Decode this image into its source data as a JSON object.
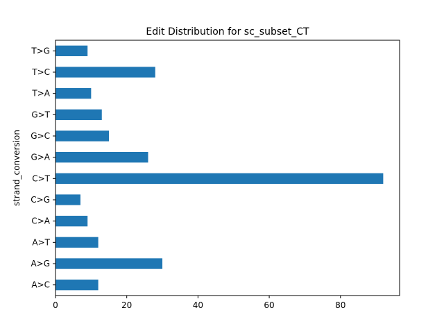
{
  "chart_data": {
    "type": "bar",
    "orientation": "horizontal",
    "title": "Edit Distribution for sc_subset_CT",
    "xlabel": "",
    "ylabel": "strand_conversion",
    "categories": [
      "A>C",
      "A>G",
      "A>T",
      "C>A",
      "C>G",
      "C>T",
      "G>A",
      "G>C",
      "G>T",
      "T>A",
      "T>C",
      "T>G"
    ],
    "values": [
      12,
      30,
      12,
      9,
      7,
      92,
      26,
      15,
      13,
      10,
      28,
      9
    ],
    "xlim": [
      0,
      96.6
    ],
    "xticks": [
      0,
      20,
      40,
      60,
      80
    ],
    "bar_color": "#1f77b4",
    "grid": false,
    "legend": false
  }
}
